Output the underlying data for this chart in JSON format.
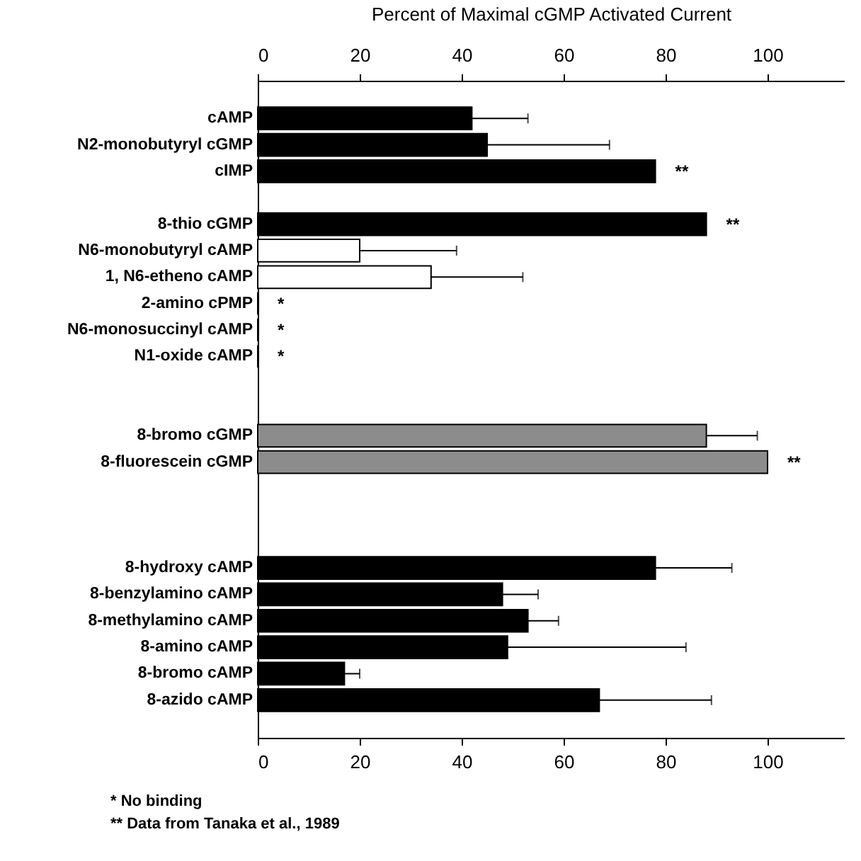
{
  "chart_data": {
    "type": "bar",
    "orientation": "horizontal",
    "x2label": "Percent of  Maximal cGMP Activated Current",
    "categories": [
      "cAMP",
      "N2-monobutyryl cGMP",
      "cIMP",
      null,
      "8-thio cGMP",
      "N6-monobutyryl cAMP",
      "1, N6-etheno cAMP",
      "2-amino cPMP",
      "N6-monosuccinyl cAMP",
      "N1-oxide cAMP",
      null,
      null,
      "8-bromo cGMP",
      "8-fluorescein cGMP",
      null,
      null,
      null,
      "8-hydroxy cAMP",
      "8-benzylamino cAMP",
      "8-methylamino cAMP",
      "8-amino cAMP",
      "8-bromo cAMP",
      "8-azido cAMP"
    ],
    "values": [
      42,
      45,
      78,
      null,
      88,
      20,
      34,
      0,
      0,
      0,
      null,
      null,
      88,
      100,
      null,
      null,
      null,
      78,
      48,
      53,
      49,
      17,
      67
    ],
    "colors": [
      "#000000",
      "#000000",
      "#000000",
      null,
      "#000000",
      "#ffffff",
      "#ffffff",
      null,
      null,
      null,
      null,
      null,
      "#8c8c8c",
      "#8c8c8c",
      null,
      null,
      null,
      "#000000",
      "#000000",
      "#000000",
      "#000000",
      "#000000",
      "#000000"
    ],
    "errors": [
      [
        42,
        53
      ],
      [
        45,
        69
      ],
      null,
      null,
      null,
      [
        20,
        39
      ],
      [
        34,
        52
      ],
      null,
      null,
      null,
      null,
      null,
      [
        88,
        98
      ],
      null,
      null,
      null,
      null,
      [
        78,
        93
      ],
      [
        48,
        55
      ],
      [
        53,
        59
      ],
      [
        49,
        84
      ],
      [
        17,
        20
      ],
      [
        67,
        89
      ]
    ],
    "xlim": [
      0,
      115
    ],
    "xticks": [
      0,
      20,
      40,
      60,
      80,
      100
    ],
    "x2lim": [
      0,
      115
    ],
    "x2ticks": [
      0,
      20,
      40,
      60,
      80,
      100
    ],
    "annotations": [
      {
        "text": "**",
        "x": 78,
        "y": "cIMP"
      },
      {
        "text": "**",
        "x": 88,
        "y": "8-thio cGMP"
      },
      {
        "text": "*",
        "x": 0,
        "y": "2-amino cPMP"
      },
      {
        "text": "*",
        "x": 0,
        "y": "N6-monosuccinyl cAMP"
      },
      {
        "text": "*",
        "x": 0,
        "y": "N1-oxide cAMP"
      },
      {
        "text": "**",
        "x": 100,
        "y": "8-fluorescein cGMP"
      },
      "* No binding",
      "** Data from Tanaka et al., 1989"
    ]
  }
}
